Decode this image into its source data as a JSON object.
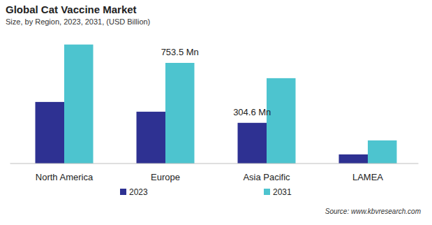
{
  "chart_data": {
    "type": "bar",
    "title": "Global  Cat Vaccine Market",
    "subtitle": "Size, by Region, 2023, 2031, (USD Billion)",
    "categories": [
      "North America",
      "Europe",
      "Asia Pacific",
      "LAMEA"
    ],
    "series": [
      {
        "name": "2023",
        "color": "#2e3192",
        "values": [
          461,
          388,
          304.6,
          68
        ],
        "value_labels": [
          null,
          null,
          "304.6 Mn",
          null
        ]
      },
      {
        "name": "2031",
        "color": "#4dc4cf",
        "values": [
          891,
          753.5,
          639,
          173
        ],
        "value_labels": [
          null,
          "753.5 Mn",
          null,
          null
        ]
      }
    ],
    "ylim": [
      0,
      900
    ],
    "data_labels": true,
    "tick_labels": "x",
    "legend": "bottom",
    "source": "Source: www.kbvresearch.com"
  }
}
